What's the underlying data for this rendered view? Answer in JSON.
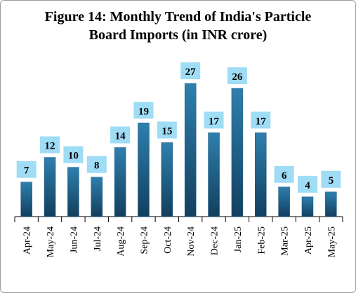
{
  "chart_data": {
    "type": "bar",
    "title": "Figure 14: Monthly Trend of India's Particle Board Imports (in INR crore)",
    "categories": [
      "Apr-24",
      "May-24",
      "Jun-24",
      "Jul-24",
      "Aug-24",
      "Sep-24",
      "Oct-24",
      "Nov-24",
      "Dec-24",
      "Jan-25",
      "Feb-25",
      "Mar-25",
      "Apr-25",
      "May-25"
    ],
    "values": [
      7,
      12,
      10,
      8,
      14,
      19,
      15,
      27,
      17,
      26,
      17,
      6,
      4,
      5
    ],
    "color": "#1f5a80",
    "label_color": "#9fdcf5"
  }
}
